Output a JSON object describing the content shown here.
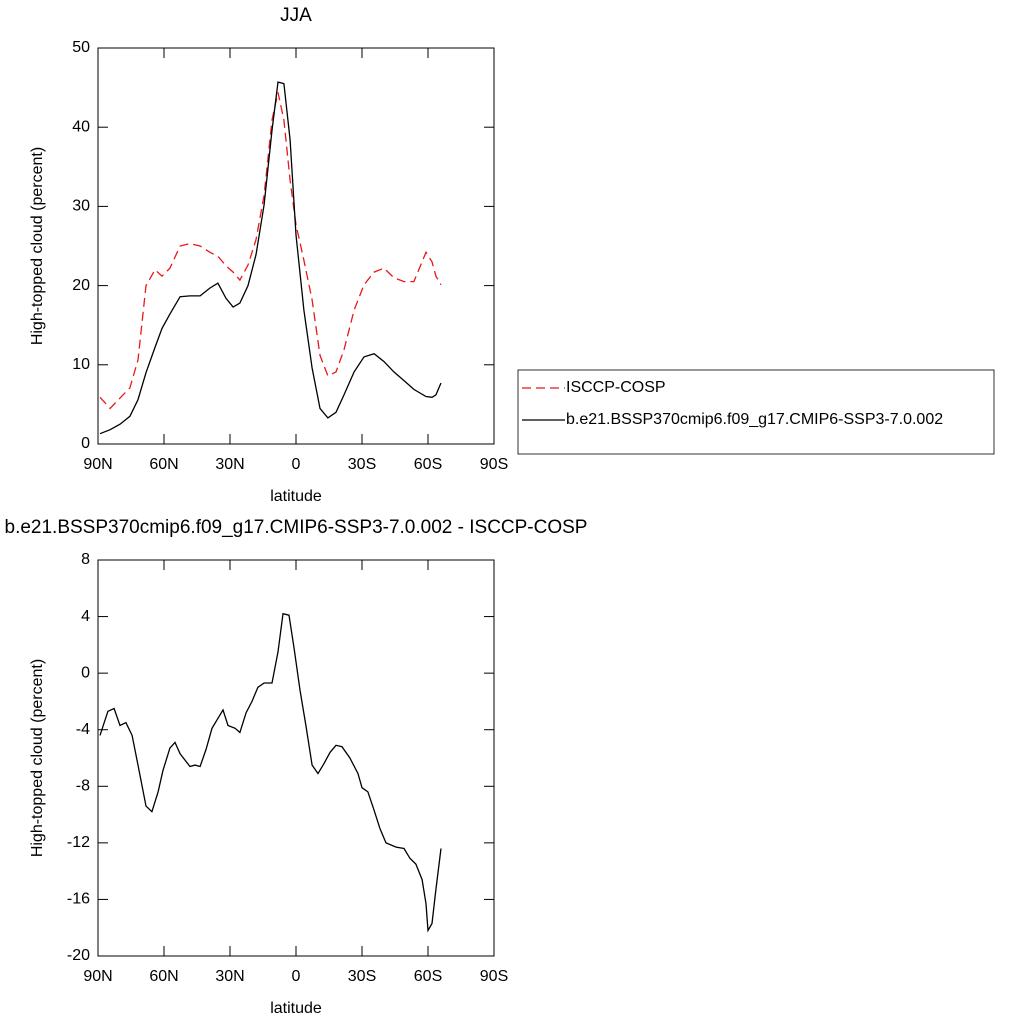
{
  "chart_data": [
    {
      "type": "line",
      "title": "JJA",
      "xlabel": "latitude",
      "ylabel": "High-topped cloud (percent)",
      "x": [
        89.1,
        84.5,
        80,
        75.5,
        71.8,
        68.2,
        64.1,
        60.9,
        57.3,
        52.7,
        48.2,
        43.6,
        39.1,
        35.5,
        31.8,
        28.6,
        25.5,
        21.8,
        18.2,
        14.5,
        10.9,
        8.2,
        5.5,
        2.7,
        0,
        -3.6,
        -7.3,
        -10.9,
        -14.5,
        -18.2,
        -21.8,
        -26.4,
        -30.9,
        -35.5,
        -40,
        -44.5,
        -49.1,
        -53.6,
        -59.1,
        -61.8,
        -63.6,
        -65.9
      ],
      "series": [
        {
          "name": "ISCCP-COSP",
          "color": "#e8181a",
          "linestyle": "dashed",
          "values": [
            5.9,
            4.5,
            5.8,
            7.1,
            10.6,
            20,
            22,
            21.2,
            22.2,
            25,
            25.3,
            25,
            24.2,
            23.7,
            22.5,
            21.7,
            20.7,
            22.6,
            25.8,
            31.4,
            40.9,
            44.4,
            40.9,
            33.3,
            27.7,
            23.2,
            18.2,
            11.2,
            8.6,
            9.1,
            11.9,
            16.9,
            20.1,
            21.7,
            22.2,
            21,
            20.5,
            20.5,
            24.2,
            23,
            21.2,
            20.1
          ]
        },
        {
          "name": "b.e21.BSSP370cmip6.f09_g17.CMIP6-SSP3-7.0.002",
          "color": "#000000",
          "linestyle": "solid",
          "values": [
            1.3,
            1.8,
            2.5,
            3.5,
            5.6,
            9,
            12.2,
            14.6,
            16.4,
            18.6,
            18.7,
            18.7,
            19.7,
            20.3,
            18.4,
            17.3,
            17.8,
            20,
            23.9,
            30.2,
            39.6,
            45.7,
            45.5,
            38.4,
            26.4,
            16.9,
            9.6,
            4.5,
            3.3,
            4,
            6.2,
            9.1,
            11,
            11.4,
            10.4,
            9.1,
            8,
            6.9,
            6,
            5.9,
            6.2,
            7.7
          ]
        }
      ],
      "xlim": [
        90,
        -90
      ],
      "xticks": [
        {
          "value": 90,
          "label": "90N"
        },
        {
          "value": 60,
          "label": "60N"
        },
        {
          "value": 30,
          "label": "30N"
        },
        0,
        {
          "value": -30,
          "label": "30S"
        },
        {
          "value": -60,
          "label": "60S"
        },
        {
          "value": -90,
          "label": "90S"
        }
      ],
      "ylim": [
        0,
        50
      ],
      "yticks": [
        0,
        10,
        20,
        30,
        40,
        50
      ],
      "legend": "right"
    },
    {
      "type": "line",
      "title": "b.e21.BSSP370cmip6.f09_g17.CMIP6-SSP3-7.0.002 - ISCCP-COSP",
      "xlabel": "latitude",
      "ylabel": "High-topped cloud (percent)",
      "x": [
        89.1,
        85.5,
        82.7,
        80,
        77.3,
        74.5,
        71.8,
        68.2,
        65.5,
        62.7,
        60.5,
        57.3,
        55,
        52.7,
        48.2,
        45.9,
        43.6,
        40.9,
        38.2,
        35.5,
        33.2,
        30.9,
        27.7,
        25.5,
        22.7,
        20,
        17.3,
        14.5,
        10.9,
        8.2,
        5.9,
        3.2,
        0.9,
        -1.8,
        -4.5,
        -7.3,
        -10,
        -12.7,
        -15.5,
        -18.2,
        -20.9,
        -24.5,
        -28.2,
        -30,
        -32.7,
        -35.5,
        -38.2,
        -40.9,
        -45.5,
        -49.1,
        -51.8,
        -54.5,
        -57.3,
        -59.1,
        -60,
        -61.8,
        -63.6,
        -65.9
      ],
      "series": [
        {
          "name": null,
          "color": "#000000",
          "linestyle": "solid",
          "values": [
            -4.4,
            -2.7,
            -2.5,
            -3.7,
            -3.5,
            -4.4,
            -6.5,
            -9.4,
            -9.8,
            -8.4,
            -6.9,
            -5.3,
            -4.9,
            -5.7,
            -6.6,
            -6.5,
            -6.6,
            -5.4,
            -3.9,
            -3.2,
            -2.6,
            -3.7,
            -3.9,
            -4.2,
            -2.8,
            -2,
            -1,
            -0.7,
            -0.7,
            1.5,
            4.2,
            4.1,
            1.8,
            -1.2,
            -3.7,
            -6.5,
            -7.1,
            -6.4,
            -5.6,
            -5.1,
            -5.2,
            -6,
            -7.1,
            -8.1,
            -8.4,
            -9.7,
            -11,
            -12,
            -12.3,
            -12.4,
            -13.1,
            -13.5,
            -14.6,
            -16.3,
            -18.2,
            -17.7,
            -15.3,
            -12.4
          ]
        }
      ],
      "xlim": [
        90,
        -90
      ],
      "xticks": [
        {
          "value": 90,
          "label": "90N"
        },
        {
          "value": 60,
          "label": "60N"
        },
        {
          "value": 30,
          "label": "30N"
        },
        0,
        {
          "value": -30,
          "label": "30S"
        },
        {
          "value": -60,
          "label": "60S"
        },
        {
          "value": -90,
          "label": "90S"
        }
      ],
      "ylim": [
        -20,
        8
      ],
      "yticks": [
        -20,
        -16,
        -12,
        -8,
        -4,
        0,
        4,
        8
      ]
    }
  ]
}
